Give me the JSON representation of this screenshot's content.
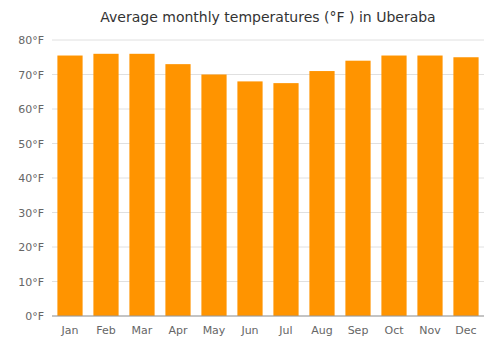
{
  "chart_data": {
    "type": "bar",
    "title": "Average monthly temperatures (°F ) in Uberaba",
    "categories": [
      "Jan",
      "Feb",
      "Mar",
      "Apr",
      "May",
      "Jun",
      "Jul",
      "Aug",
      "Sep",
      "Oct",
      "Nov",
      "Dec"
    ],
    "values": [
      75.5,
      76.0,
      76.0,
      73.0,
      70.0,
      68.0,
      67.5,
      71.0,
      74.0,
      75.5,
      75.5,
      75.0
    ],
    "color": "#ff9400",
    "ylim": [
      0,
      80
    ],
    "yticks": [
      {
        "value": 0,
        "label": "0°F"
      },
      {
        "value": 10,
        "label": "10°F"
      },
      {
        "value": 20,
        "label": "20°F"
      },
      {
        "value": 30,
        "label": "30°F"
      },
      {
        "value": 40,
        "label": "40°F"
      },
      {
        "value": 50,
        "label": "50°F"
      },
      {
        "value": 60,
        "label": "60°F"
      },
      {
        "value": 70,
        "label": "70°F"
      },
      {
        "value": 80,
        "label": "80°F"
      }
    ],
    "grid": true
  }
}
